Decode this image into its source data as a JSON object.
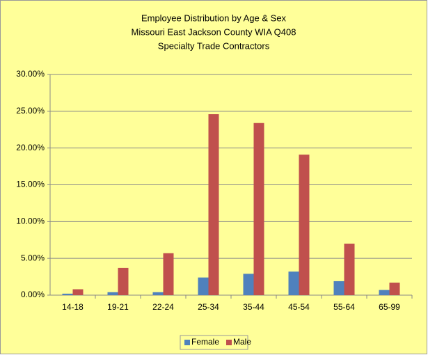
{
  "chart_data": {
    "type": "bar",
    "title_lines": [
      "Employee Distribution by Age & Sex",
      "Missouri East Jackson County WIA Q408",
      "Specialty Trade Contractors"
    ],
    "categories": [
      "14-18",
      "19-21",
      "22-24",
      "25-34",
      "35-44",
      "45-54",
      "55-64",
      "65-99"
    ],
    "series": [
      {
        "name": "Female",
        "color": "#4f81bd",
        "values": [
          0.2,
          0.4,
          0.4,
          2.4,
          2.9,
          3.2,
          1.9,
          0.7
        ]
      },
      {
        "name": "Male",
        "color": "#c0504d",
        "values": [
          0.8,
          3.7,
          5.7,
          24.6,
          23.4,
          19.1,
          7.0,
          1.7
        ]
      }
    ],
    "ylim": [
      0,
      30
    ],
    "yticks": [
      {
        "value": 0,
        "label": "0.00%"
      },
      {
        "value": 5,
        "label": "5.00%"
      },
      {
        "value": 10,
        "label": "10.00%"
      },
      {
        "value": 15,
        "label": "15.00%"
      },
      {
        "value": 20,
        "label": "20.00%"
      },
      {
        "value": 25,
        "label": "25.00%"
      },
      {
        "value": 30,
        "label": "30.00%"
      }
    ],
    "grid": true,
    "legend": "bottom"
  }
}
